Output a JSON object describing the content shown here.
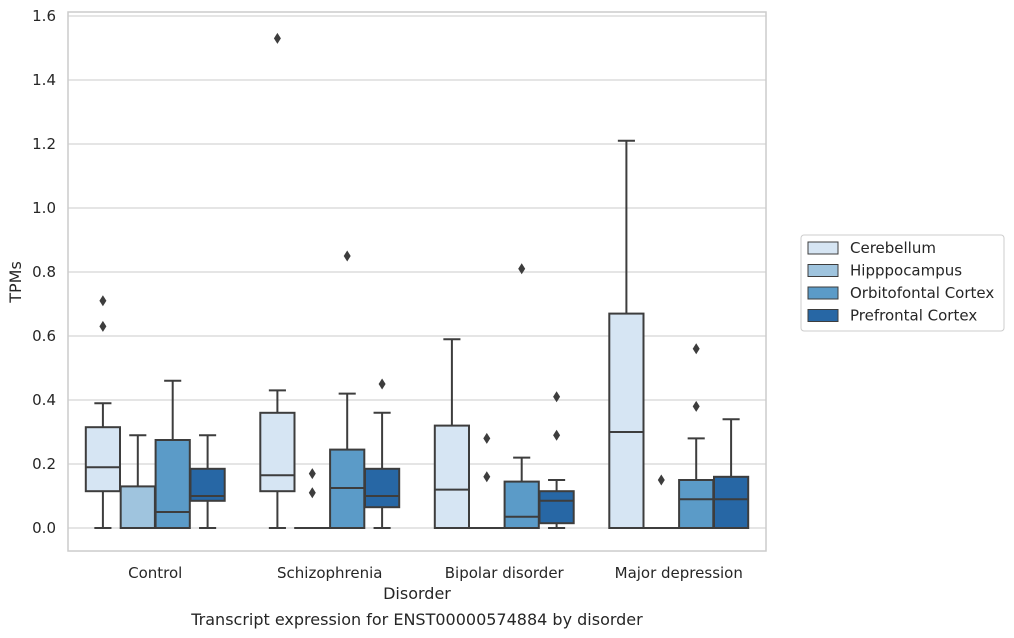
{
  "chart_data": {
    "type": "box",
    "title": "",
    "caption": "Transcript expression for ENST00000574884 by disorder",
    "xlabel": "Disorder",
    "ylabel": "TPMs",
    "ylim": [
      -0.07,
      1.61
    ],
    "yticks": [
      "0.0",
      "0.2",
      "0.4",
      "0.6",
      "0.8",
      "1.0",
      "1.2",
      "1.4",
      "1.6"
    ],
    "grid": "horizontal",
    "legend_position": "right",
    "categories": [
      "Control",
      "Schizophrenia",
      "Bipolar disorder",
      "Major depression"
    ],
    "series": [
      {
        "name": "Cerebellum",
        "color": "#d6e5f3",
        "boxes": [
          {
            "whisker_low": 0.0,
            "q1": 0.115,
            "median": 0.19,
            "q3": 0.315,
            "whisker_high": 0.39,
            "outliers": [
              0.63,
              0.71
            ]
          },
          {
            "whisker_low": 0.0,
            "q1": 0.115,
            "median": 0.165,
            "q3": 0.36,
            "whisker_high": 0.43,
            "outliers": [
              1.53
            ]
          },
          {
            "whisker_low": 0.0,
            "q1": 0.0,
            "median": 0.12,
            "q3": 0.32,
            "whisker_high": 0.59,
            "outliers": []
          },
          {
            "whisker_low": 0.0,
            "q1": 0.0,
            "median": 0.3,
            "q3": 0.67,
            "whisker_high": 1.21,
            "outliers": []
          }
        ]
      },
      {
        "name": "Hipppocampus",
        "color": "#9fc4de",
        "boxes": [
          {
            "whisker_low": 0.0,
            "q1": 0.0,
            "median": 0.0,
            "q3": 0.13,
            "whisker_high": 0.29,
            "outliers": []
          },
          {
            "whisker_low": 0.0,
            "q1": 0.0,
            "median": 0.0,
            "q3": 0.0,
            "whisker_high": 0.0,
            "outliers": [
              0.11,
              0.17
            ]
          },
          {
            "whisker_low": 0.0,
            "q1": 0.0,
            "median": 0.0,
            "q3": 0.0,
            "whisker_high": 0.0,
            "outliers": [
              0.16,
              0.28
            ]
          },
          {
            "whisker_low": 0.0,
            "q1": 0.0,
            "median": 0.0,
            "q3": 0.0,
            "whisker_high": 0.0,
            "outliers": [
              0.15
            ]
          }
        ]
      },
      {
        "name": "Orbitofontal Cortex",
        "color": "#5b9bc8",
        "boxes": [
          {
            "whisker_low": 0.0,
            "q1": 0.0,
            "median": 0.05,
            "q3": 0.275,
            "whisker_high": 0.46,
            "outliers": []
          },
          {
            "whisker_low": 0.0,
            "q1": 0.0,
            "median": 0.125,
            "q3": 0.245,
            "whisker_high": 0.42,
            "outliers": [
              0.85
            ]
          },
          {
            "whisker_low": 0.0,
            "q1": 0.0,
            "median": 0.035,
            "q3": 0.145,
            "whisker_high": 0.22,
            "outliers": [
              0.81
            ]
          },
          {
            "whisker_low": 0.0,
            "q1": 0.0,
            "median": 0.09,
            "q3": 0.15,
            "whisker_high": 0.28,
            "outliers": [
              0.38,
              0.56
            ]
          }
        ]
      },
      {
        "name": "Prefrontal Cortex",
        "color": "#2767a5",
        "boxes": [
          {
            "whisker_low": 0.0,
            "q1": 0.085,
            "median": 0.1,
            "q3": 0.185,
            "whisker_high": 0.29,
            "outliers": []
          },
          {
            "whisker_low": 0.0,
            "q1": 0.065,
            "median": 0.1,
            "q3": 0.185,
            "whisker_high": 0.36,
            "outliers": [
              0.45
            ]
          },
          {
            "whisker_low": 0.0,
            "q1": 0.015,
            "median": 0.085,
            "q3": 0.115,
            "whisker_high": 0.15,
            "outliers": [
              0.29,
              0.41
            ]
          },
          {
            "whisker_low": 0.0,
            "q1": 0.0,
            "median": 0.09,
            "q3": 0.16,
            "whisker_high": 0.34,
            "outliers": []
          }
        ]
      }
    ]
  }
}
